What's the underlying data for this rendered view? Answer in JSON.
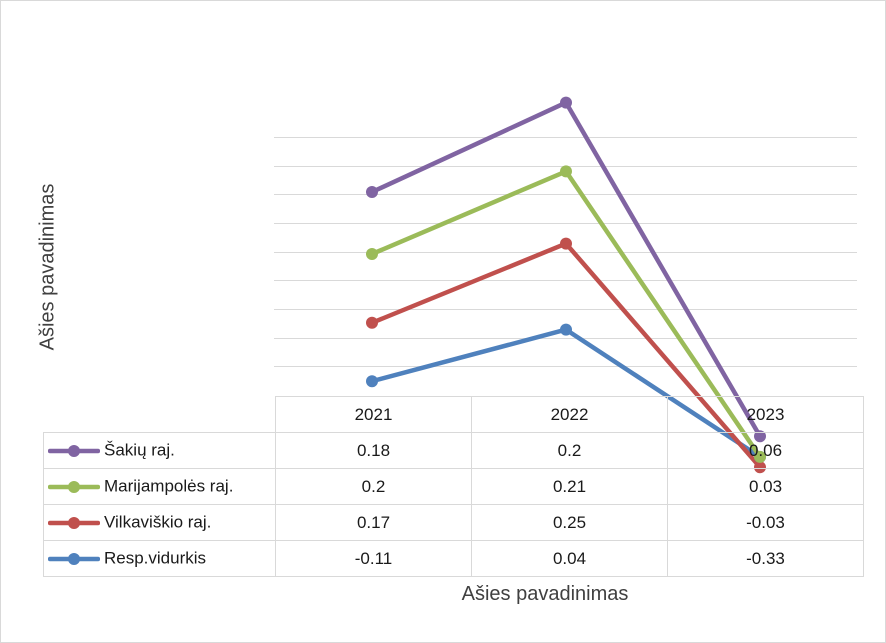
{
  "chart_data": {
    "type": "line",
    "categories": [
      "2021",
      "2022",
      "2023"
    ],
    "series": [
      {
        "name": "Šakių raj.",
        "values": [
          "0.18",
          "0.2",
          "0.06"
        ],
        "color": "#8064a2"
      },
      {
        "name": "Marijampolės raj.",
        "values": [
          "0.2",
          "0.21",
          "0.03"
        ],
        "color": "#9bbb59"
      },
      {
        "name": "Vilkaviškio raj.",
        "values": [
          "0.17",
          "0.25",
          "-0.03"
        ],
        "color": "#c0504d"
      },
      {
        "name": "Resp.vidurkis",
        "values": [
          "-0.11",
          "0.04",
          "-0.33"
        ],
        "color": "#4f81bd"
      }
    ],
    "stacked": true,
    "xlabel": "Ašies pavadinimas",
    "ylabel": "Ašies pavadinimas",
    "grid": true,
    "legend": "data-table",
    "y_tick_labels_visible": false
  }
}
